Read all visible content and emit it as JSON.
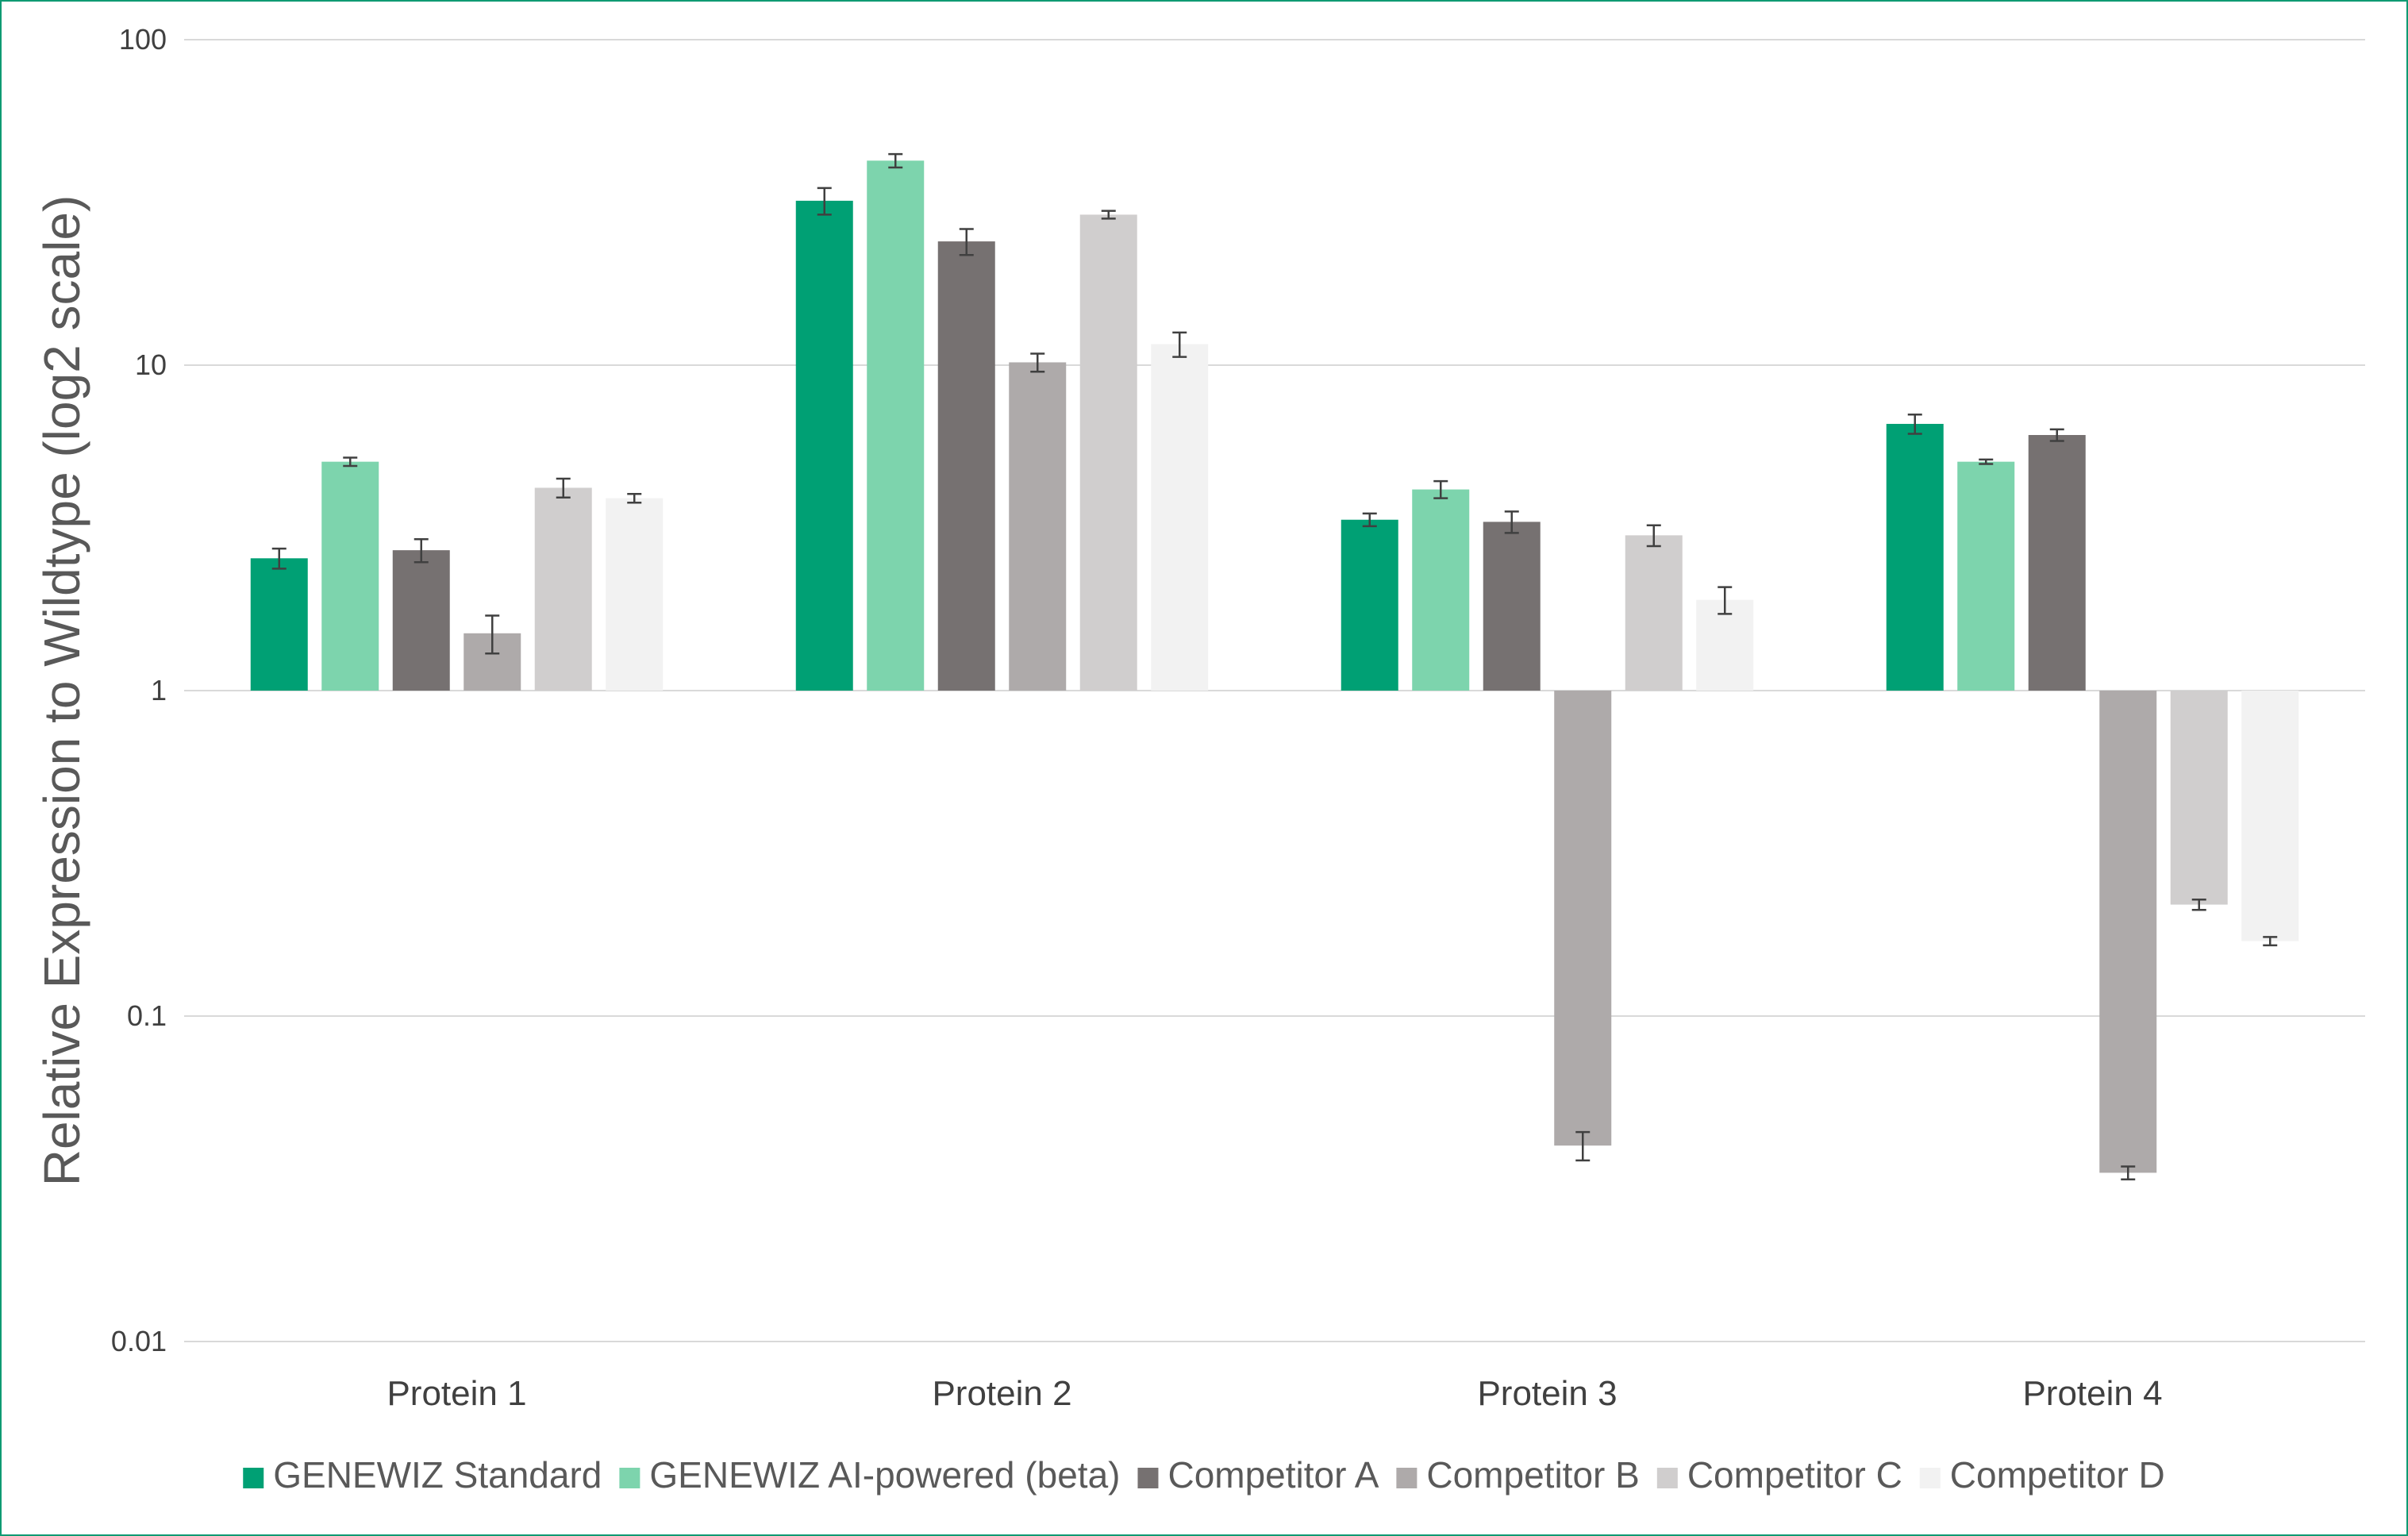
{
  "chart_data": {
    "type": "bar",
    "title": "",
    "xlabel": "",
    "ylabel": "Relative Expression to Wildtype (log2 scale)",
    "yscale": "log",
    "baseline": 1,
    "ylim": [
      0.01,
      100
    ],
    "yticks": [
      {
        "value": 0.01,
        "label": "0.01"
      },
      {
        "value": 0.1,
        "label": "0.1"
      },
      {
        "value": 1,
        "label": "1"
      },
      {
        "value": 10,
        "label": "10"
      },
      {
        "value": 100,
        "label": "100"
      }
    ],
    "grid": true,
    "legend_position": "bottom",
    "categories": [
      "Protein 1",
      "Protein 2",
      "Protein 3",
      "Protein 4"
    ],
    "series": [
      {
        "name": "GENEWIZ Standard",
        "color": "#00a074",
        "values": [
          2.55,
          32,
          3.35,
          6.6
        ],
        "errors": [
          0.18,
          3.0,
          0.15,
          0.45
        ]
      },
      {
        "name": "GENEWIZ AI-powered (beta)",
        "color": "#7dd4ad",
        "values": [
          5.05,
          42.5,
          4.15,
          5.05
        ],
        "errors": [
          0.15,
          2.0,
          0.25,
          0.08
        ]
      },
      {
        "name": "Competitor A",
        "color": "#767171",
        "values": [
          2.7,
          24,
          3.3,
          6.1
        ],
        "errors": [
          0.22,
          2.2,
          0.25,
          0.25
        ]
      },
      {
        "name": "Competitor B",
        "color": "#aeaaaa",
        "values": [
          1.5,
          10.2,
          0.04,
          0.033
        ],
        "errors": [
          0.2,
          0.65,
          0.004,
          0.0015
        ]
      },
      {
        "name": "Competitor C",
        "color": "#d0cece",
        "values": [
          4.2,
          29,
          3.0,
          0.22
        ],
        "errors": [
          0.28,
          0.8,
          0.22,
          0.008
        ]
      },
      {
        "name": "Competitor D",
        "color": "#f2f2f2",
        "values": [
          3.9,
          11.6,
          1.9,
          0.17
        ],
        "errors": [
          0.12,
          1.0,
          0.18,
          0.005
        ]
      }
    ]
  }
}
